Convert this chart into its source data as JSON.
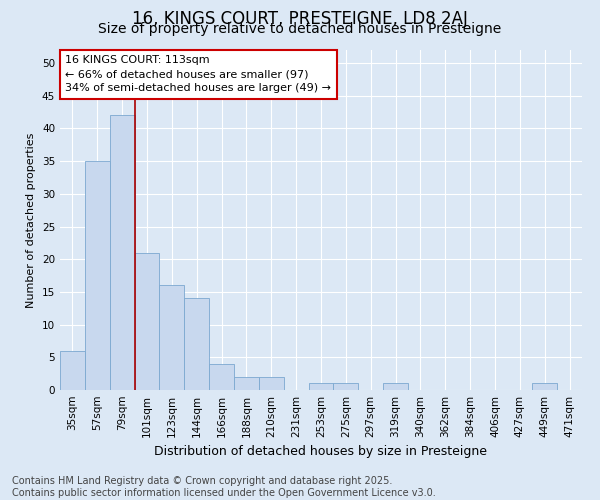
{
  "title": "16, KINGS COURT, PRESTEIGNE, LD8 2AJ",
  "subtitle": "Size of property relative to detached houses in Presteigne",
  "xlabel": "Distribution of detached houses by size in Presteigne",
  "ylabel": "Number of detached properties",
  "categories": [
    "35sqm",
    "57sqm",
    "79sqm",
    "101sqm",
    "123sqm",
    "144sqm",
    "166sqm",
    "188sqm",
    "210sqm",
    "231sqm",
    "253sqm",
    "275sqm",
    "297sqm",
    "319sqm",
    "340sqm",
    "362sqm",
    "384sqm",
    "406sqm",
    "427sqm",
    "449sqm",
    "471sqm"
  ],
  "values": [
    6,
    35,
    42,
    21,
    16,
    14,
    4,
    2,
    2,
    0,
    1,
    1,
    0,
    1,
    0,
    0,
    0,
    0,
    0,
    1,
    0
  ],
  "bar_color": "#c8d8ee",
  "bar_edge_color": "#7ba8d0",
  "vline_x_index": 2.5,
  "vline_color": "#aa0000",
  "annotation_box_text": "16 KINGS COURT: 113sqm\n← 66% of detached houses are smaller (97)\n34% of semi-detached houses are larger (49) →",
  "annotation_box_fc": "white",
  "annotation_box_ec": "#cc0000",
  "ylim": [
    0,
    52
  ],
  "yticks": [
    0,
    5,
    10,
    15,
    20,
    25,
    30,
    35,
    40,
    45,
    50
  ],
  "background_color": "#dce8f5",
  "plot_bg_color": "#dce8f5",
  "grid_color": "white",
  "footer_text": "Contains HM Land Registry data © Crown copyright and database right 2025.\nContains public sector information licensed under the Open Government Licence v3.0.",
  "title_fontsize": 12,
  "subtitle_fontsize": 10,
  "xlabel_fontsize": 9,
  "ylabel_fontsize": 8,
  "tick_fontsize": 7.5,
  "annotation_fontsize": 8,
  "footer_fontsize": 7
}
